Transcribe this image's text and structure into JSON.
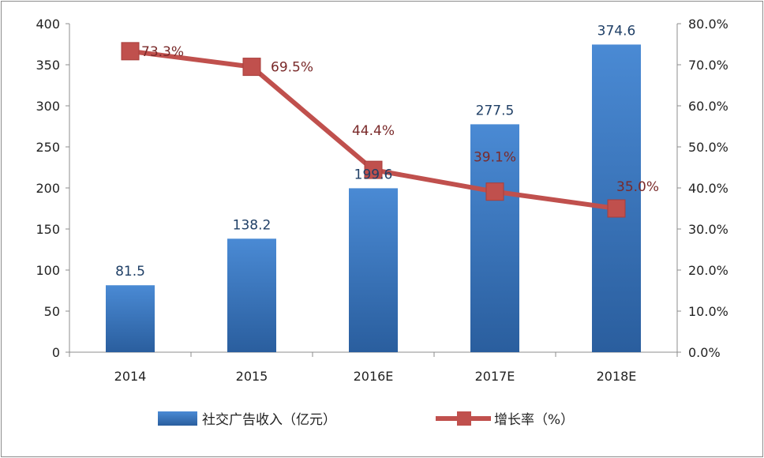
{
  "chart_data": {
    "type": "bar",
    "categories": [
      "2014",
      "2015",
      "2016E",
      "2017E",
      "2018E"
    ],
    "series": [
      {
        "name": "社交广告收入（亿元）",
        "type": "bar",
        "axis": "left",
        "values": [
          81.5,
          138.2,
          199.6,
          277.5,
          374.6
        ],
        "labels": [
          "81.5",
          "138.2",
          "199.6",
          "277.5",
          "374.6"
        ],
        "color": "#3a78c0"
      },
      {
        "name": "增长率（%）",
        "type": "line",
        "axis": "right",
        "values": [
          73.3,
          69.5,
          44.4,
          39.1,
          35.0
        ],
        "labels": [
          "73.3%",
          "69.5%",
          "44.4%",
          "39.1%",
          "35.0%"
        ],
        "color": "#c0504d"
      }
    ],
    "y_left": {
      "ylim": [
        0,
        400
      ],
      "ticks": [
        "0",
        "50",
        "100",
        "150",
        "200",
        "250",
        "300",
        "350",
        "400"
      ]
    },
    "y_right": {
      "ylim": [
        0,
        80
      ],
      "ticks": [
        "0.0%",
        "10.0%",
        "20.0%",
        "30.0%",
        "40.0%",
        "50.0%",
        "60.0%",
        "70.0%",
        "80.0%"
      ]
    },
    "grid": false,
    "legend": "bottom"
  }
}
